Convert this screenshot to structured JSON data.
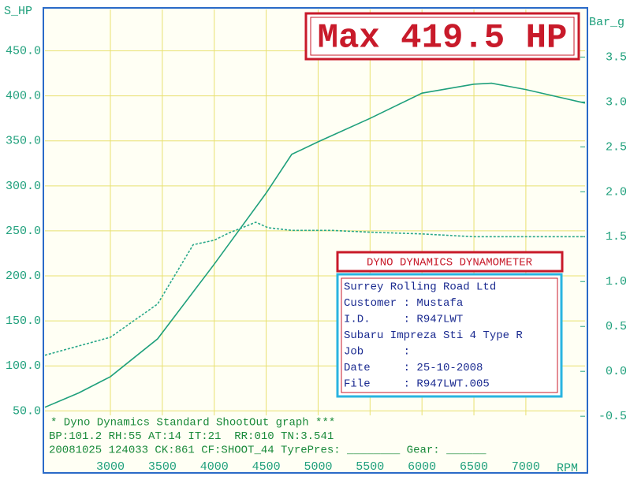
{
  "chart_data": {
    "type": "line",
    "title": "Max 419.5 HP",
    "y_label": "S_HP",
    "y2_label": "Bar_g",
    "x_label": "RPM",
    "xlim": [
      2370,
      7570
    ],
    "ylim": [
      45,
      496
    ],
    "y2lim": [
      -0.49,
      4.03
    ],
    "xticks": [
      3000,
      3500,
      4000,
      4500,
      5000,
      5500,
      6000,
      6500,
      7000
    ],
    "yticks": [
      {
        "value": 50,
        "label": "50.0"
      },
      {
        "value": 100,
        "label": "100.0"
      },
      {
        "value": 150,
        "label": "150.0"
      },
      {
        "value": 200,
        "label": "200.0"
      },
      {
        "value": 250,
        "label": "250.0"
      },
      {
        "value": 300,
        "label": "300.0"
      },
      {
        "value": 350,
        "label": "350.0"
      },
      {
        "value": 400,
        "label": "400.0"
      },
      {
        "value": 450,
        "label": "450.0"
      }
    ],
    "y2ticks": [
      -0.5,
      {
        "value": 0,
        "label": "0.0"
      },
      0.5,
      {
        "value": 1,
        "label": "1.0"
      },
      1.5,
      {
        "value": 2,
        "label": "2.0"
      },
      2.5,
      {
        "value": 3,
        "label": "3.0"
      },
      3.5
    ],
    "grid": true,
    "series": [
      {
        "name": "S_HP",
        "color": "#1fa07c",
        "dashed": false,
        "x": [
          2370,
          2696,
          3000,
          3455,
          4000,
          4500,
          4746,
          5000,
          5500,
          6000,
          6500,
          6670,
          7000,
          7569
        ],
        "values": [
          54,
          70,
          88,
          130,
          213,
          292,
          335,
          349,
          375,
          403,
          413,
          414,
          407,
          392
        ]
      },
      {
        "name": "Bar_g",
        "color": "#2aa88a",
        "dashed": true,
        "axis": "y2",
        "x": [
          2370,
          3000,
          3455,
          3797,
          4000,
          4139,
          4400,
          4518,
          4746,
          5125,
          5505,
          6000,
          6491,
          7569
        ],
        "values": [
          0.18,
          0.38,
          0.75,
          1.41,
          1.46,
          1.54,
          1.66,
          1.6,
          1.57,
          1.57,
          1.55,
          1.53,
          1.5,
          1.5
        ]
      }
    ]
  },
  "info_box": {
    "title": "DYNO DYNAMICS DYNAMOMETER",
    "lines": [
      "Surrey Rolling Road Ltd",
      "Customer : Mustafa",
      "I.D.     : R947LWT",
      "Subaru Impreza Sti 4 Type R",
      "Job      :",
      "Date     : 25-10-2008",
      "File     : R947LWT.005"
    ]
  },
  "footer": [
    "* Dyno Dynamics Standard ShootOut graph ***",
    "BP:101.2 RH:55 AT:14 IT:21  RR:010 TN:3.541",
    "20081025 124033 CK:861 CF:SHOOT_44 TyrePres: ________ Gear: ______"
  ]
}
